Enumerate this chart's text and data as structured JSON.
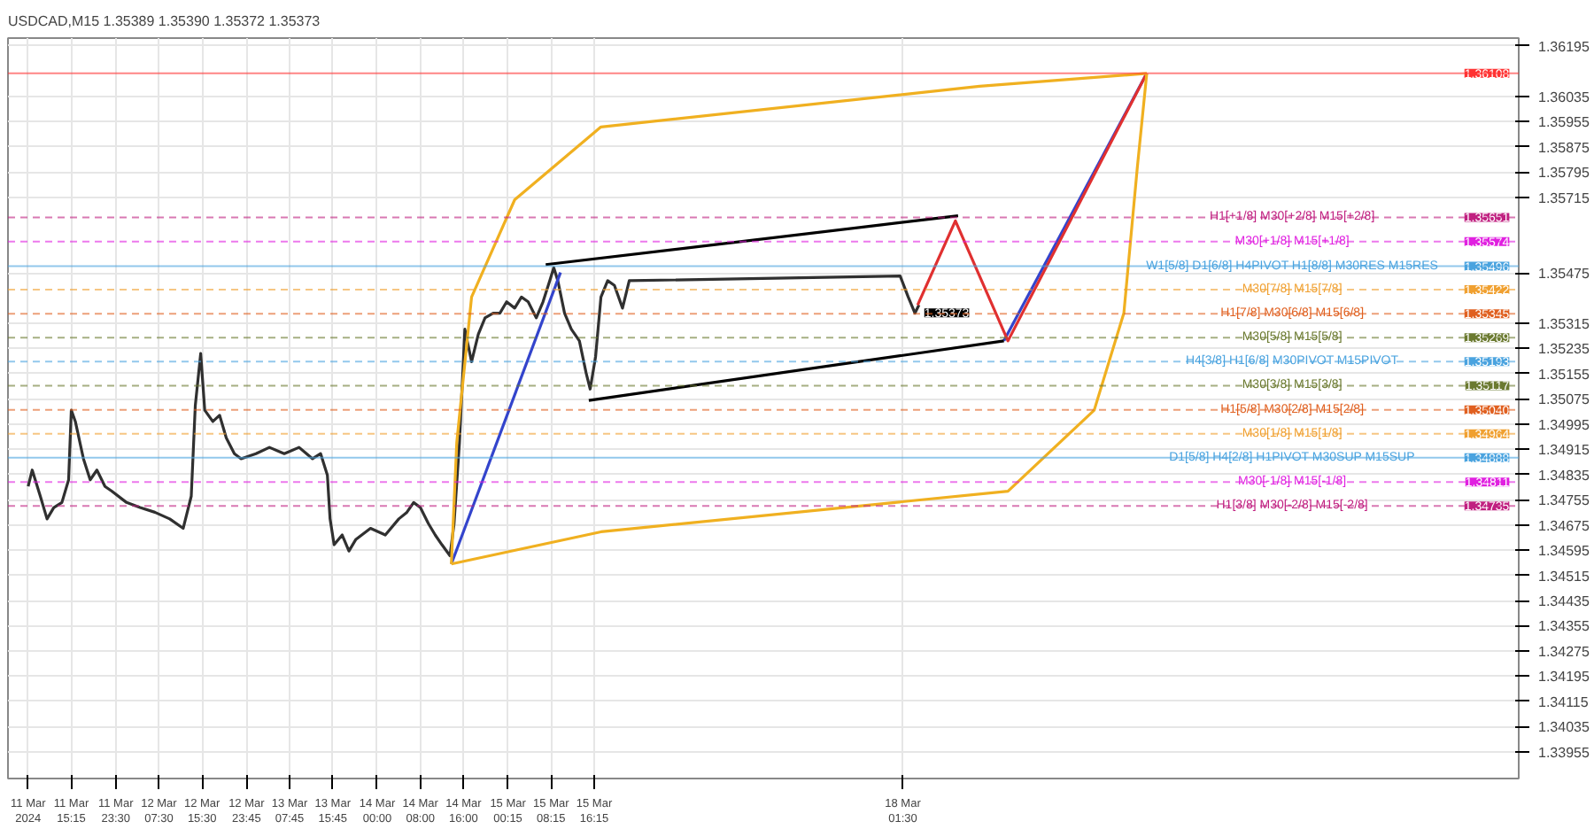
{
  "chart_data": {
    "type": "line",
    "title": "USDCAD,M15 1.35389 1.35390 1.35372 1.35373",
    "xlim": [
      "2024-03-11T03:30",
      "2024-03-22T19:45"
    ],
    "ylim": [
      1.3387,
      1.3622
    ],
    "xticks": [
      {
        "value": "2024-03-11T07:15",
        "label": "11 Mar 2024"
      },
      {
        "value": "2024-03-11T15:15",
        "label": "11 Mar 15:15"
      },
      {
        "value": "2024-03-11T23:30",
        "label": "11 Mar 23:30"
      },
      {
        "value": "2024-03-12T07:30",
        "label": "12 Mar 07:30"
      },
      {
        "value": "2024-03-12T15:30",
        "label": "12 Mar 15:30"
      },
      {
        "value": "2024-03-12T23:45",
        "label": "12 Mar 23:45"
      },
      {
        "value": "2024-03-13T07:45",
        "label": "13 Mar 07:45"
      },
      {
        "value": "2024-03-13T15:45",
        "label": "13 Mar 15:45"
      },
      {
        "value": "2024-03-14T00:00",
        "label": "14 Mar 00:00"
      },
      {
        "value": "2024-03-14T08:00",
        "label": "14 Mar 08:00"
      },
      {
        "value": "2024-03-14T16:00",
        "label": "14 Mar 16:00"
      },
      {
        "value": "2024-03-15T00:15",
        "label": "15 Mar 00:15"
      },
      {
        "value": "2024-03-15T08:15",
        "label": "15 Mar 08:15"
      },
      {
        "value": "2024-03-15T16:15",
        "label": "15 Mar 16:15"
      },
      {
        "value": "2024-03-18T01:30",
        "label": "18 Mar 01:30"
      }
    ],
    "yticks": [
      1.36195,
      1.36035,
      1.35955,
      1.35875,
      1.35795,
      1.35715,
      1.35475,
      1.35315,
      1.35235,
      1.35155,
      1.35075,
      1.34995,
      1.34915,
      1.34835,
      1.34755,
      1.34675,
      1.34595,
      1.34515,
      1.34435,
      1.34355,
      1.34275,
      1.34195,
      1.34115,
      1.34035,
      1.33955
    ],
    "grid": true,
    "series": [
      {
        "color": "#303030",
        "x": [
          "2024-03-11T07:15",
          "2024-03-11T08:00",
          "2024-03-11T09:30",
          "2024-03-11T10:45",
          "2024-03-11T12:00",
          "2024-03-11T13:30",
          "2024-03-11T14:45",
          "2024-03-11T15:15",
          "2024-03-11T16:00",
          "2024-03-11T17:30",
          "2024-03-11T18:45",
          "2024-03-11T20:00",
          "2024-03-11T21:30",
          "2024-03-11T22:45",
          "2024-03-12T01:30",
          "2024-03-12T04:00",
          "2024-03-12T06:45",
          "2024-03-12T09:30",
          "2024-03-12T12:00",
          "2024-03-12T13:30",
          "2024-03-12T14:15",
          "2024-03-12T15:15",
          "2024-03-12T16:00",
          "2024-03-12T17:30",
          "2024-03-12T18:45",
          "2024-03-12T20:00",
          "2024-03-12T21:30",
          "2024-03-12T22:45",
          "2024-03-13T01:30",
          "2024-03-13T04:00",
          "2024-03-13T06:45",
          "2024-03-13T09:30",
          "2024-03-13T12:00",
          "2024-03-13T13:30",
          "2024-03-13T14:45",
          "2024-03-13T15:15",
          "2024-03-13T16:00",
          "2024-03-13T17:30",
          "2024-03-13T18:45",
          "2024-03-13T20:00",
          "2024-03-13T22:45",
          "2024-03-14T01:30",
          "2024-03-14T04:00",
          "2024-03-14T05:30",
          "2024-03-14T06:45",
          "2024-03-14T08:00",
          "2024-03-14T09:30",
          "2024-03-14T10:45",
          "2024-03-14T12:00",
          "2024-03-14T13:30",
          "2024-03-14T14:15",
          "2024-03-14T15:15",
          "2024-03-14T16:15",
          "2024-03-14T17:30",
          "2024-03-14T18:45",
          "2024-03-14T20:00",
          "2024-03-14T21:30",
          "2024-03-14T22:45",
          "2024-03-15T00:00",
          "2024-03-15T01:30",
          "2024-03-15T02:45",
          "2024-03-15T04:00",
          "2024-03-15T05:30",
          "2024-03-15T06:45",
          "2024-03-15T08:00",
          "2024-03-15T08:45",
          "2024-03-15T09:30",
          "2024-03-15T10:45",
          "2024-03-15T12:00",
          "2024-03-15T13:30",
          "2024-03-15T14:45",
          "2024-03-15T15:30",
          "2024-03-15T16:30",
          "2024-03-15T17:30",
          "2024-03-15T18:45",
          "2024-03-15T20:00",
          "2024-03-15T21:30",
          "2024-03-15T22:45",
          "2024-03-18T01:00",
          "2024-03-18T02:30",
          "2024-03-18T03:45",
          "2024-03-18T04:30"
        ],
        "values": [
          1.34797,
          1.34849,
          1.34766,
          1.34694,
          1.3473,
          1.34746,
          1.34818,
          1.35039,
          1.35003,
          1.34885,
          1.34818,
          1.34849,
          1.34797,
          1.34782,
          1.34746,
          1.3473,
          1.34715,
          1.34694,
          1.34664,
          1.34766,
          1.35054,
          1.35219,
          1.35039,
          1.35003,
          1.35023,
          1.34951,
          1.34901,
          1.34885,
          1.34901,
          1.34921,
          1.34901,
          1.34921,
          1.34885,
          1.34901,
          1.34833,
          1.34694,
          1.34612,
          1.34643,
          1.34592,
          1.34628,
          1.34664,
          1.34643,
          1.34694,
          1.34715,
          1.34746,
          1.3473,
          1.34679,
          1.34643,
          1.34612,
          1.34577,
          1.34679,
          1.34936,
          1.35296,
          1.35193,
          1.3528,
          1.35332,
          1.35347,
          1.35347,
          1.35383,
          1.35363,
          1.35398,
          1.35383,
          1.35332,
          1.35383,
          1.3545,
          1.35491,
          1.3545,
          1.35347,
          1.35296,
          1.35259,
          1.35157,
          1.35106,
          1.35208,
          1.35398,
          1.3545,
          1.35435,
          1.35363,
          1.3545,
          1.35465,
          1.35398,
          1.35347,
          1.35373
        ]
      },
      {
        "color": "#3344cc",
        "x": [
          "2024-03-14T13:45",
          "2024-03-15T10:00"
        ],
        "values": [
          1.34551,
          1.35476
        ]
      },
      {
        "color": "#3344cc",
        "x": [
          "2024-03-18T20:15",
          "2024-03-19T22:45"
        ],
        "values": [
          1.35259,
          1.36108
        ]
      },
      {
        "color": "#e03030",
        "x": [
          "2024-03-18T04:15",
          "2024-03-18T11:15",
          "2024-03-18T21:00",
          "2024-03-19T22:45"
        ],
        "values": [
          1.35373,
          1.3564,
          1.35259,
          1.36108
        ]
      },
      {
        "color": "#000000",
        "x": [
          "2024-03-15T07:15",
          "2024-03-18T11:45"
        ],
        "values": [
          1.35501,
          1.35656
        ]
      },
      {
        "color": "#000000",
        "x": [
          "2024-03-15T15:15",
          "2024-03-18T20:15"
        ],
        "values": [
          1.3507,
          1.35259
        ]
      },
      {
        "color": "#f0b020",
        "x": [
          "2024-03-14T13:45",
          "2024-03-14T14:45",
          "2024-03-14T17:30",
          "2024-03-15T01:30",
          "2024-03-15T17:30",
          "2024-03-18T15:45",
          "2024-03-19T22:45"
        ],
        "values": [
          1.34551,
          1.34936,
          1.35398,
          1.35707,
          1.35938,
          1.36067,
          1.36108
        ]
      },
      {
        "color": "#f0b020",
        "x": [
          "2024-03-14T13:45",
          "2024-03-15T17:30",
          "2024-03-18T21:00",
          "2024-03-19T13:00",
          "2024-03-19T18:30",
          "2024-03-19T21:00",
          "2024-03-19T22:45"
        ],
        "values": [
          1.34551,
          1.34653,
          1.34782,
          1.35039,
          1.35347,
          1.3581,
          1.36108
        ]
      }
    ],
    "ref_lines": [
      {
        "axis": "y",
        "value": 1.36108,
        "label": null,
        "color": "#ff3333",
        "line_style": "solid"
      },
      {
        "axis": "y",
        "value": 1.35651,
        "label": "H1[+1/8] M30[+2/8] M15[+2/8]",
        "color": "#c02080",
        "line_style": "dashed"
      },
      {
        "axis": "y",
        "value": 1.35574,
        "label": "M30[+1/8] M15[+1/8]",
        "color": "#e020e0",
        "line_style": "dashed"
      },
      {
        "axis": "y",
        "value": 1.35496,
        "label": "W1[5/8] D1[6/8] H4PIVOT H1[8/8] M30RES M15RES",
        "color": "#4aa3df",
        "line_style": "solid"
      },
      {
        "axis": "y",
        "value": 1.35422,
        "label": "M30[7/8] M15[7/8]",
        "color": "#f0a030",
        "line_style": "dashed"
      },
      {
        "axis": "y",
        "value": 1.35345,
        "label": "H1[7/8] M30[6/8] M15[6/8]",
        "color": "#e06020",
        "line_style": "dashed"
      },
      {
        "axis": "y",
        "value": 1.35269,
        "label": "M30[5/8] M15[5/8]",
        "color": "#6b7a30",
        "line_style": "dashed"
      },
      {
        "axis": "y",
        "value": 1.35193,
        "label": "H4[3/8] H1[6/8] M30PIVOT M15PIVOT",
        "color": "#4aa3df",
        "line_style": "dashed"
      },
      {
        "axis": "y",
        "value": 1.35117,
        "label": "M30[3/8] M15[3/8]",
        "color": "#6b7a30",
        "line_style": "dashed"
      },
      {
        "axis": "y",
        "value": 1.3504,
        "label": "H1[5/8] M30[2/8] M15[2/8]",
        "color": "#e06020",
        "line_style": "dashed"
      },
      {
        "axis": "y",
        "value": 1.34964,
        "label": "M30[1/8] M15[1/8]",
        "color": "#f0a030",
        "line_style": "dashed"
      },
      {
        "axis": "y",
        "value": 1.34888,
        "label": "D1[5/8] H4[2/8] H1PIVOT M30SUP M15SUP",
        "color": "#4aa3df",
        "line_style": "solid"
      },
      {
        "axis": "y",
        "value": 1.34811,
        "label": "M30[-1/8] M15[-1/8]",
        "color": "#e020e0",
        "line_style": "dashed"
      },
      {
        "axis": "y",
        "value": 1.34735,
        "label": "H1[3/8] M30[-2/8] M15[-2/8]",
        "color": "#c02080",
        "line_style": "dashed"
      }
    ],
    "annotations": [
      {
        "text": "1.36108",
        "x": "2024-03-22T18:00",
        "y": 1.36108
      },
      {
        "text": "1.35651",
        "x": "2024-03-22T18:00",
        "y": 1.35651
      },
      {
        "text": "1.35574",
        "x": "2024-03-22T18:00",
        "y": 1.35574
      },
      {
        "text": "1.35496",
        "x": "2024-03-22T18:00",
        "y": 1.35496
      },
      {
        "text": "1.35422",
        "x": "2024-03-22T18:00",
        "y": 1.35422
      },
      {
        "text": "1.35373",
        "x": "2024-03-18T04:30",
        "y": 1.35373
      },
      {
        "text": "1.35345",
        "x": "2024-03-22T18:00",
        "y": 1.35345
      },
      {
        "text": "1.35269",
        "x": "2024-03-22T18:00",
        "y": 1.35269
      },
      {
        "text": "1.35193",
        "x": "2024-03-22T18:00",
        "y": 1.35193
      },
      {
        "text": "1.35117",
        "x": "2024-03-22T18:00",
        "y": 1.35117
      },
      {
        "text": "1.35040",
        "x": "2024-03-22T18:00",
        "y": 1.3504
      },
      {
        "text": "1.34964",
        "x": "2024-03-22T18:00",
        "y": 1.34964
      },
      {
        "text": "1.34888",
        "x": "2024-03-22T18:00",
        "y": 1.34888
      },
      {
        "text": "1.34811",
        "x": "2024-03-22T18:00",
        "y": 1.34811
      },
      {
        "text": "1.34735",
        "x": "2024-03-22T18:00",
        "y": 1.34735
      }
    ]
  }
}
